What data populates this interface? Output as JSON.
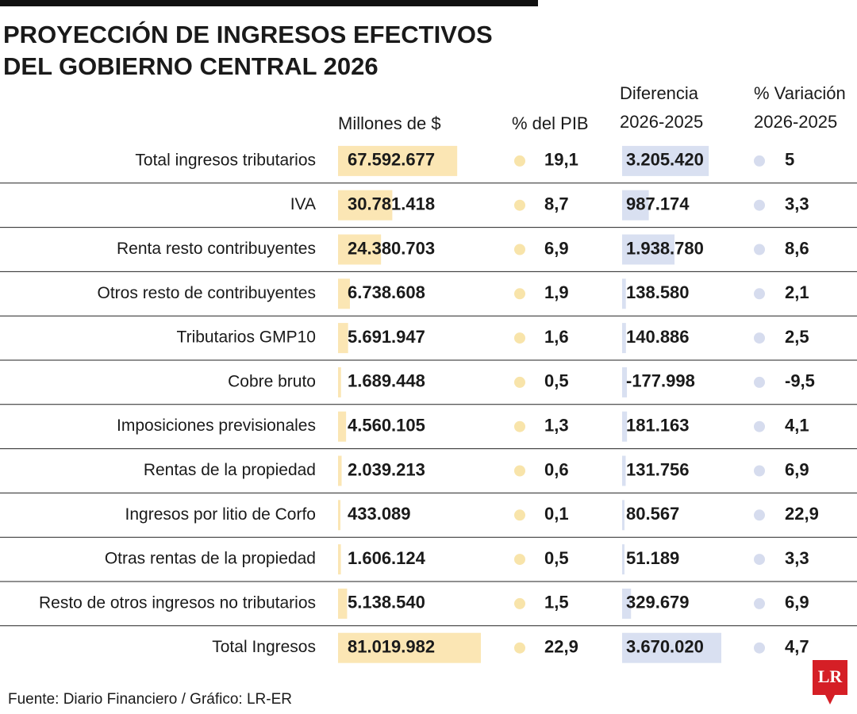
{
  "header": {
    "title": [
      "PROYECCIÓN DE INGRESOS EFECTIVOS",
      "DEL GOBIERNO CENTRAL 2026"
    ]
  },
  "table": {
    "columns": {
      "millones": "Millones de $",
      "pib": "% del PIB",
      "diferencia": [
        "Diferencia",
        "2026-2025"
      ],
      "variacion": [
        "% Variación",
        "2026-2025"
      ]
    },
    "rows": [
      {
        "label": "Total ingresos tributarios",
        "millones": {
          "value": 67592677,
          "label": "67.592.677"
        },
        "pib": {
          "value": 19.1,
          "label": "19,1"
        },
        "diferencia": {
          "value": 3205420,
          "label": "3.205.420"
        },
        "variacion": 5
      },
      {
        "label": "IVA",
        "millones": {
          "value": 30781418,
          "label": "30.781.418"
        },
        "pib": {
          "value": 8.7,
          "label": "8,7"
        },
        "diferencia": {
          "value": 987174,
          "label": "987.174"
        },
        "variacion": {
          "value": 3.3,
          "label": "3,3"
        }
      },
      {
        "label": "Renta resto contribuyentes",
        "millones": {
          "value": 24380703,
          "label": "24.380.703"
        },
        "pib": {
          "value": 6.9,
          "label": "6,9"
        },
        "diferencia": {
          "value": 1938780,
          "label": "1.938.780"
        },
        "variacion": {
          "value": 8.6,
          "label": "8,6"
        }
      },
      {
        "label": "Otros resto de contribuyentes",
        "millones": {
          "value": 6738608,
          "label": "6.738.608"
        },
        "pib": {
          "value": 1.9,
          "label": "1,9"
        },
        "diferencia": {
          "value": 138580,
          "label": "138.580"
        },
        "variacion": {
          "value": 2.1,
          "label": "2,1"
        }
      },
      {
        "label": "Tributarios GMP10",
        "millones": {
          "value": 5691947,
          "label": "5.691.947"
        },
        "pib": {
          "value": 1.6,
          "label": "1,6"
        },
        "diferencia": {
          "value": 140886,
          "label": "140.886"
        },
        "variacion": {
          "value": 2.5,
          "label": "2,5"
        }
      },
      {
        "label": "Cobre bruto",
        "millones": {
          "value": 1689448,
          "label": "1.689.448"
        },
        "pib": {
          "value": 0.5,
          "label": "0,5"
        },
        "diferencia": {
          "value": -177998,
          "label": "-177.998"
        },
        "variacion": {
          "value": -9.5,
          "label": "-9,5"
        }
      },
      {
        "label": "Imposiciones previsionales",
        "millones": {
          "value": 4560105,
          "label": "4.560.105"
        },
        "pib": {
          "value": 1.3,
          "label": "1,3"
        },
        "diferencia": {
          "value": 181163,
          "label": "181.163"
        },
        "variacion": {
          "value": 4.1,
          "label": "4,1"
        }
      },
      {
        "label": "Rentas de la propiedad",
        "millones": {
          "value": 2039213,
          "label": "2.039.213"
        },
        "pib": {
          "value": 0.6,
          "label": "0,6"
        },
        "diferencia": {
          "value": 131756,
          "label": "131.756"
        },
        "variacion": {
          "value": 6.9,
          "label": "6,9"
        }
      },
      {
        "label": "Ingresos por litio de Corfo",
        "millones": {
          "value": 433089,
          "label": "433.089"
        },
        "pib": {
          "value": 0.1,
          "label": "0,1"
        },
        "diferencia": {
          "value": 80567,
          "label": "80.567"
        },
        "variacion": {
          "value": 22.9,
          "label": "22,9"
        }
      },
      {
        "label": "Otras rentas de la propiedad",
        "millones": {
          "value": 1606124,
          "label": "1.606.124"
        },
        "pib": {
          "value": 0.5,
          "label": "0,5"
        },
        "diferencia": {
          "value": 51189,
          "label": "51.189"
        },
        "variacion": {
          "value": 3.3,
          "label": "3,3"
        }
      },
      {
        "label": "Resto de otros ingresos no tributarios",
        "millones": {
          "value": 5138540,
          "label": "5.138.540"
        },
        "pib": {
          "value": 1.5,
          "label": "1,5"
        },
        "diferencia": {
          "value": 329679,
          "label": "329.679"
        },
        "variacion": {
          "value": 6.9,
          "label": "6,9"
        }
      },
      {
        "label": "Total Ingresos",
        "millones": {
          "value": 81019982,
          "label": "81.019.982"
        },
        "pib": {
          "value": 22.9,
          "label": "22,9"
        },
        "diferencia": {
          "value": 3670020,
          "label": "3.670.020"
        },
        "variacion": {
          "value": 4.7,
          "label": "4,7"
        }
      }
    ]
  },
  "footer": {
    "source": "Fuente: Diario Financiero / Gráfico: LR-ER",
    "logo": "LR"
  }
}
